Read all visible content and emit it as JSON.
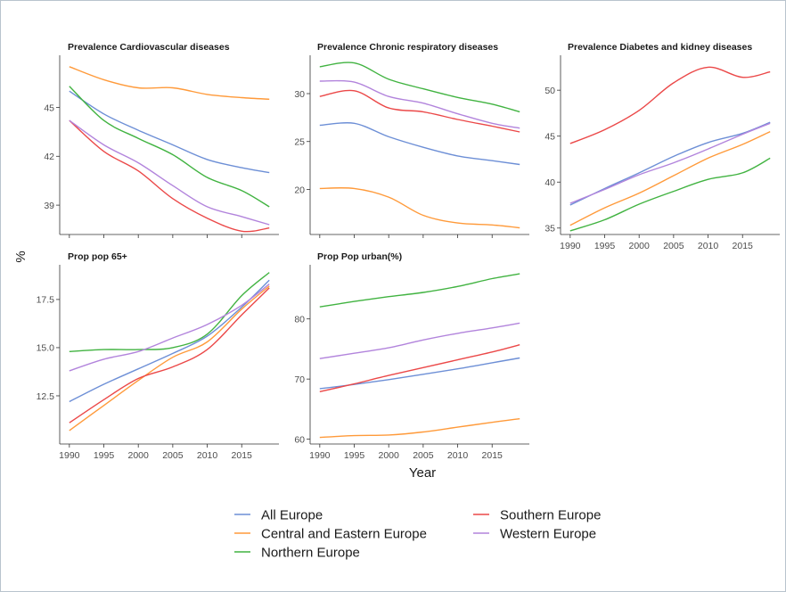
{
  "chart_data": {
    "type": "line",
    "ylabel": "%",
    "xlabel": "Year",
    "x": [
      1990,
      1995,
      2000,
      2005,
      2010,
      2015,
      2019
    ],
    "colors": {
      "All Europe": "#6d8fd6",
      "Central and Eastern Europe": "#ff9a3a",
      "Northern Europe": "#41b341",
      "Southern Europe": "#eb4848",
      "Western Europe": "#b284dc"
    },
    "legend": {
      "position": "bottom",
      "entries": [
        "All Europe",
        "Central and Eastern Europe",
        "Northern Europe",
        "Southern Europe",
        "Western Europe"
      ]
    },
    "panels": [
      {
        "title": "Prevalence Cardiovascular diseases",
        "ylim": [
          37.2,
          48.2
        ],
        "yticks": [
          39,
          42,
          45
        ],
        "ytick_labels": [
          "39",
          "42",
          "45"
        ],
        "xtick_labels": [],
        "series": [
          {
            "name": "All Europe",
            "values": [
              46.0,
              44.6,
              43.6,
              42.7,
              41.8,
              41.3,
              41.0
            ]
          },
          {
            "name": "Central and Eastern Europe",
            "values": [
              47.5,
              46.7,
              46.2,
              46.2,
              45.8,
              45.6,
              45.5
            ]
          },
          {
            "name": "Northern Europe",
            "values": [
              46.3,
              44.2,
              43.1,
              42.1,
              40.7,
              39.9,
              38.9
            ]
          },
          {
            "name": "Southern Europe",
            "values": [
              44.2,
              42.3,
              41.1,
              39.4,
              38.2,
              37.4,
              37.6
            ]
          },
          {
            "name": "Western Europe",
            "values": [
              44.2,
              42.7,
              41.6,
              40.2,
              38.9,
              38.3,
              37.8
            ]
          }
        ]
      },
      {
        "title": "Prevalence Chronic respiratory diseases",
        "ylim": [
          15.3,
          34.0
        ],
        "yticks": [
          20,
          25,
          30
        ],
        "ytick_labels": [
          "20",
          "25",
          "30"
        ],
        "xtick_labels": [],
        "series": [
          {
            "name": "All Europe",
            "values": [
              26.7,
              26.9,
              25.5,
              24.4,
              23.5,
              23.0,
              22.6
            ]
          },
          {
            "name": "Central and Eastern Europe",
            "values": [
              20.1,
              20.1,
              19.2,
              17.3,
              16.5,
              16.3,
              16.0
            ]
          },
          {
            "name": "Northern Europe",
            "values": [
              32.8,
              33.2,
              31.5,
              30.5,
              29.6,
              28.9,
              28.1
            ]
          },
          {
            "name": "Southern Europe",
            "values": [
              29.7,
              30.3,
              28.5,
              28.1,
              27.3,
              26.6,
              26.0
            ]
          },
          {
            "name": "Western Europe",
            "values": [
              31.3,
              31.2,
              29.7,
              29.0,
              27.9,
              26.9,
              26.4
            ]
          }
        ]
      },
      {
        "title": "Prevalence Diabetes and kidney diseases",
        "ylim": [
          34.3,
          53.8
        ],
        "yticks": [
          35,
          40,
          45,
          50
        ],
        "ytick_labels": [
          "35",
          "40",
          "45",
          "50"
        ],
        "xtick_labels": [
          "1990",
          "1995",
          "2000",
          "2005",
          "2010",
          "2015"
        ],
        "series": [
          {
            "name": "All Europe",
            "values": [
              37.5,
              39.3,
              41.0,
              42.8,
              44.3,
              45.3,
              46.5
            ]
          },
          {
            "name": "Central and Eastern Europe",
            "values": [
              35.3,
              37.2,
              38.8,
              40.7,
              42.6,
              44.1,
              45.5
            ]
          },
          {
            "name": "Northern Europe",
            "values": [
              34.7,
              35.9,
              37.6,
              39.0,
              40.3,
              41.0,
              42.6
            ]
          },
          {
            "name": "Southern Europe",
            "values": [
              44.2,
              45.7,
              47.8,
              50.8,
              52.5,
              51.4,
              52.0
            ]
          },
          {
            "name": "Western Europe",
            "values": [
              37.7,
              39.2,
              40.8,
              42.1,
              43.6,
              45.2,
              46.4
            ]
          }
        ]
      },
      {
        "title": "Prop pop 65+",
        "ylim": [
          10.0,
          19.3
        ],
        "yticks": [
          12.5,
          15.0,
          17.5
        ],
        "ytick_labels": [
          "12.5",
          "15.0",
          "17.5"
        ],
        "xtick_labels": [
          "1990",
          "1995",
          "2000",
          "2005",
          "2010",
          "2015"
        ],
        "series": [
          {
            "name": "All Europe",
            "values": [
              12.2,
              13.1,
              13.9,
              14.7,
              15.6,
              17.1,
              18.5
            ]
          },
          {
            "name": "Central and Eastern Europe",
            "values": [
              10.7,
              12.0,
              13.3,
              14.5,
              15.3,
              17.0,
              18.2
            ]
          },
          {
            "name": "Northern Europe",
            "values": [
              14.8,
              14.9,
              14.9,
              15.0,
              15.7,
              17.7,
              18.9
            ]
          },
          {
            "name": "Southern Europe",
            "values": [
              11.1,
              12.3,
              13.4,
              14.0,
              14.9,
              16.7,
              18.1
            ]
          },
          {
            "name": "Western Europe",
            "values": [
              13.8,
              14.4,
              14.8,
              15.5,
              16.2,
              17.2,
              18.3
            ]
          }
        ]
      },
      {
        "title": "Prop Pop urban(%)",
        "ylim": [
          59.2,
          89.0
        ],
        "yticks": [
          60,
          70,
          80
        ],
        "ytick_labels": [
          "60",
          "70",
          "80"
        ],
        "xtick_labels": [
          "1990",
          "1995",
          "2000",
          "2005",
          "2010",
          "2015"
        ],
        "series": [
          {
            "name": "All Europe",
            "values": [
              68.4,
              69.1,
              69.9,
              70.8,
              71.7,
              72.7,
              73.5
            ]
          },
          {
            "name": "Central and Eastern Europe",
            "values": [
              60.3,
              60.6,
              60.7,
              61.2,
              62.0,
              62.8,
              63.4
            ]
          },
          {
            "name": "Northern Europe",
            "values": [
              82.0,
              82.9,
              83.7,
              84.4,
              85.4,
              86.7,
              87.5
            ]
          },
          {
            "name": "Southern Europe",
            "values": [
              67.9,
              69.2,
              70.6,
              71.9,
              73.2,
              74.5,
              75.7
            ]
          },
          {
            "name": "Western Europe",
            "values": [
              73.4,
              74.3,
              75.2,
              76.5,
              77.6,
              78.5,
              79.3
            ]
          }
        ]
      }
    ]
  }
}
